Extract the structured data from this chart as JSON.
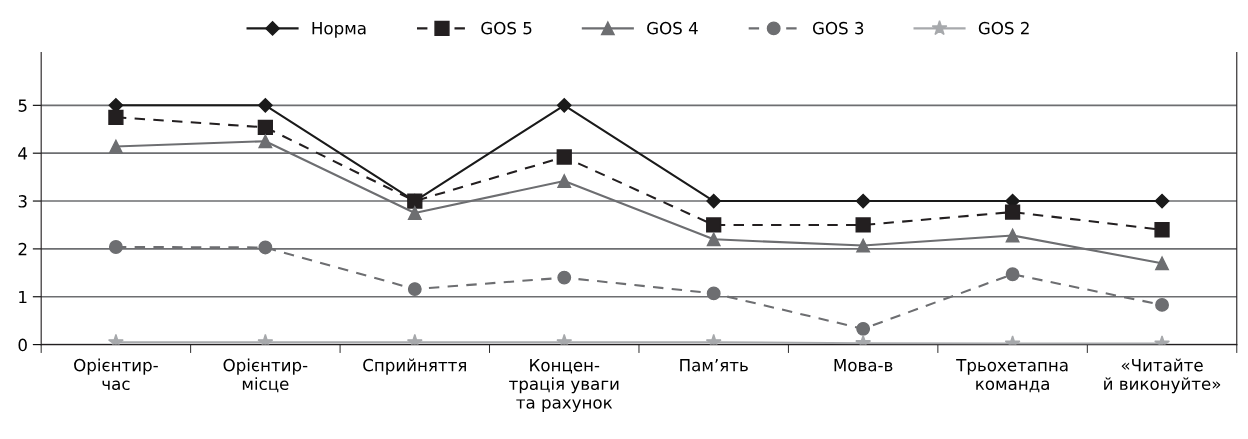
{
  "chart_data": {
    "type": "line",
    "categories": [
      "Орієнтир-\nчас",
      "Орієнтир-\nмісце",
      "Сприйняття",
      "Концен-\nтрація уваги\nта рахунок",
      "Пам’ять",
      "Мова-в",
      "Трьохетапна\nкоманда",
      "«Читайте\nй виконуйте»"
    ],
    "series": [
      {
        "name": "Норма",
        "color": "#1a1a1a",
        "marker": "diamond",
        "line_style": "solid",
        "values": [
          5,
          5,
          3,
          5,
          3,
          3,
          3,
          3
        ]
      },
      {
        "name": "GOS 5",
        "color": "#231f20",
        "marker": "square",
        "line_style": "dashed",
        "values": [
          4.75,
          4.54,
          3.0,
          3.92,
          2.5,
          2.5,
          2.77,
          2.4
        ]
      },
      {
        "name": "GOS 4",
        "color": "#6d6e71",
        "marker": "triangle",
        "line_style": "solid",
        "values": [
          4.14,
          4.25,
          2.75,
          3.42,
          2.2,
          2.07,
          2.28,
          1.7
        ]
      },
      {
        "name": "GOS 3",
        "color": "#6d6e71",
        "marker": "circle",
        "line_style": "dashed",
        "values": [
          2.04,
          2.03,
          1.16,
          1.4,
          1.07,
          0.33,
          1.47,
          0.83
        ]
      },
      {
        "name": "GOS 2",
        "color": "#a7a9ac",
        "marker": "star",
        "line_style": "solid",
        "values": [
          0.05,
          0.05,
          0.05,
          0.05,
          0.05,
          0.03,
          0.02,
          0.02
        ]
      }
    ],
    "ylim": [
      0,
      6.1
    ],
    "yticks": [
      0,
      1,
      2,
      3,
      4,
      5
    ],
    "grid": "y",
    "legend": "top"
  }
}
